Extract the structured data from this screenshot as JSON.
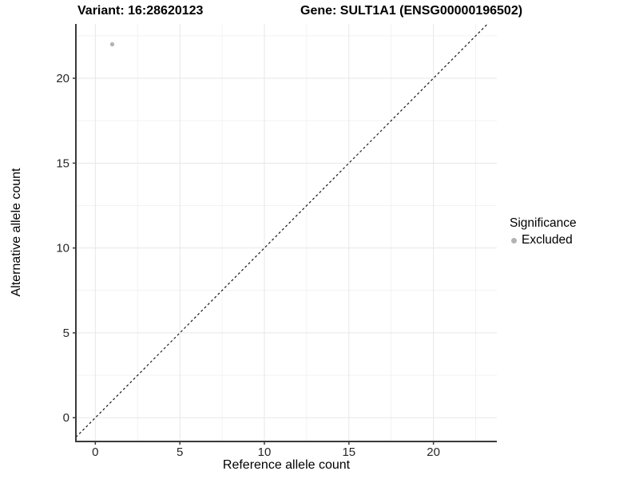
{
  "header": {
    "variant_title": "Variant: 16:28620123",
    "gene_title": "Gene: SULT1A1 (ENSG00000196502)"
  },
  "chart_data": {
    "type": "scatter",
    "xlabel": "Reference allele count",
    "ylabel": "Alternative allele count",
    "xlim": [
      -1.15,
      23.75
    ],
    "ylim": [
      -1.4,
      23.2
    ],
    "x_ticks": [
      0,
      5,
      10,
      15,
      20
    ],
    "y_ticks": [
      0,
      5,
      10,
      15,
      20
    ],
    "minor_step": 2.5,
    "grid": true,
    "points": [
      {
        "x": 1,
        "y": 22,
        "series": "Excluded",
        "color": "#b3b3b3"
      }
    ],
    "abline": {
      "slope": 1,
      "intercept": 0,
      "style": "dashed"
    },
    "colors": {
      "background": "#ffffff",
      "grid_major": "#e7e7e7",
      "grid_minor": "#f2f2f2",
      "axis_line": "#3a3a3a",
      "tick_label": "#262626",
      "abline": "#1a1a1a",
      "excluded": "#b3b3b3"
    }
  },
  "legend": {
    "title": "Significance",
    "items": [
      {
        "label": "Excluded",
        "color": "#b3b3b3"
      }
    ]
  }
}
